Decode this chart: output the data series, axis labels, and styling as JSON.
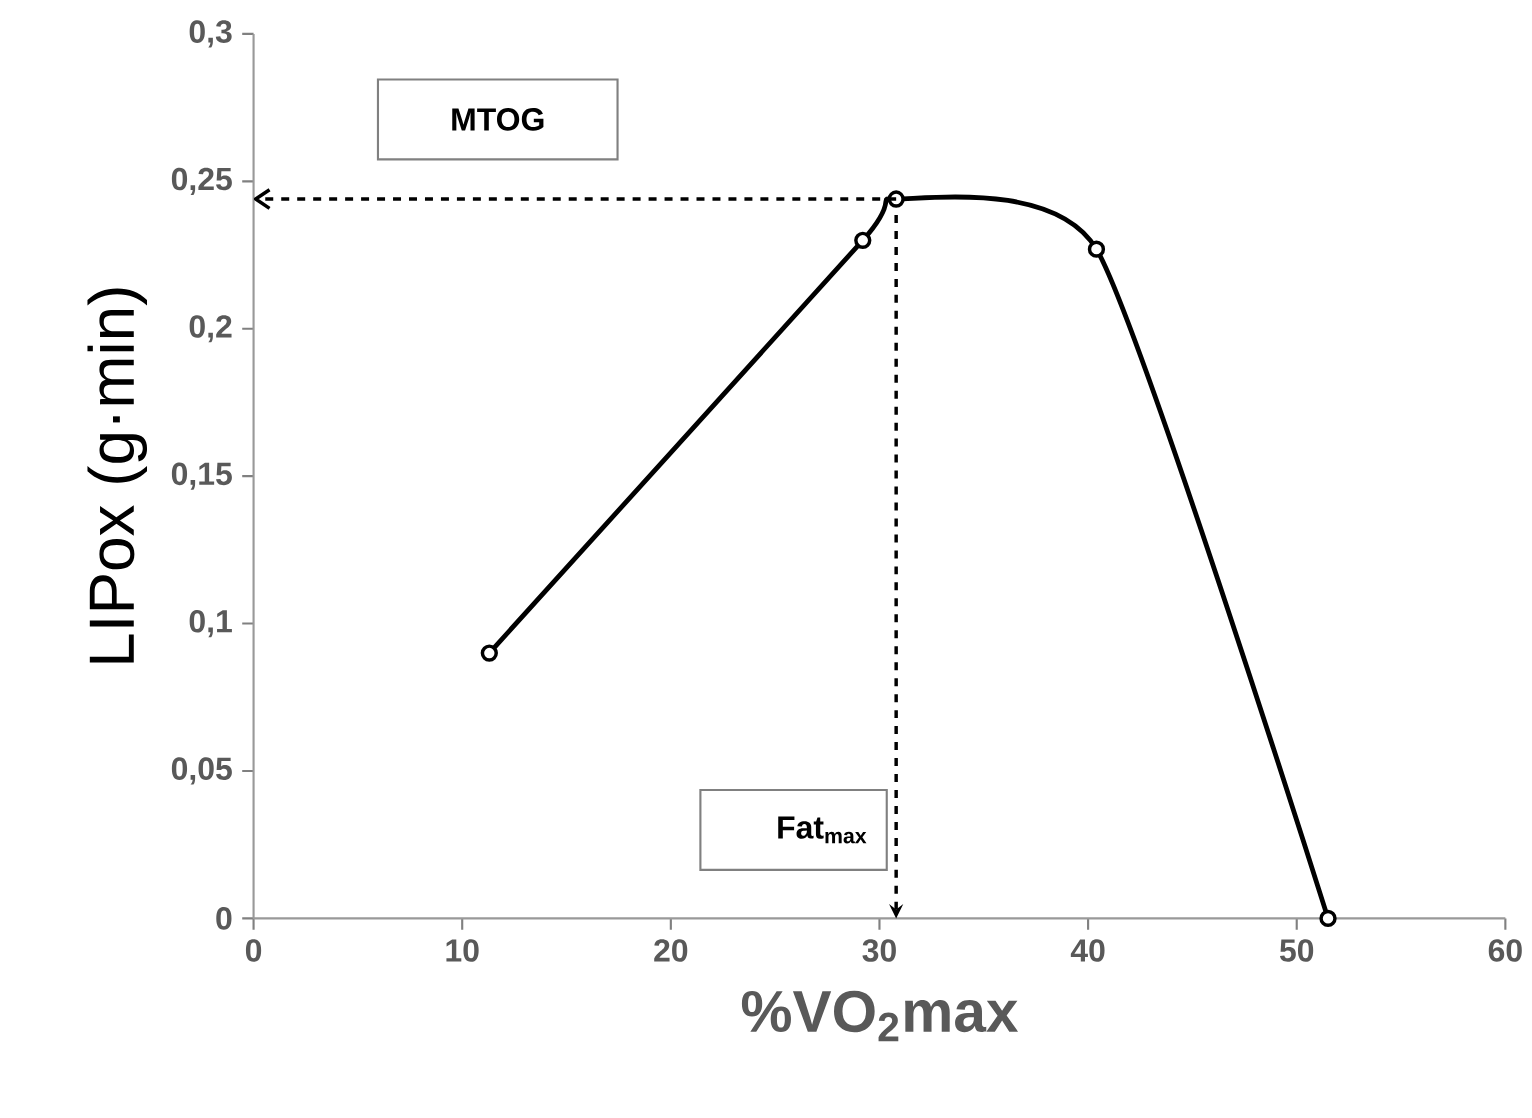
{
  "chart_data": {
    "type": "line",
    "xlabel": "%VO$_{2}$max",
    "ylabel": "LIPox (g·min)",
    "x": [
      11.3,
      29.2,
      30.8,
      40.4,
      51.5
    ],
    "series": [
      {
        "color": "#000000",
        "values": [
          0.09,
          0.23,
          0.244,
          0.227,
          0
        ]
      }
    ],
    "marker": "circle",
    "line_style": "solid",
    "grid": false,
    "xlim": [
      0,
      60
    ],
    "xticks": [
      0,
      10,
      20,
      30,
      40,
      50,
      60
    ],
    "ylim": [
      0,
      0.3
    ],
    "yticks": [
      {
        "value": 0,
        "label": "0"
      },
      {
        "value": 0.05,
        "label": "0,05"
      },
      {
        "value": 0.1,
        "label": "0,1"
      },
      {
        "value": 0.15,
        "label": "0,15"
      },
      {
        "value": 0.2,
        "label": "0,2"
      },
      {
        "value": 0.25,
        "label": "0,25"
      },
      {
        "value": 0.3,
        "label": "0,3"
      }
    ],
    "ref_lines": [
      {
        "axis": "y",
        "value": 0.244,
        "label": "MTOG",
        "line_style": "dashed"
      },
      {
        "axis": "x",
        "value": 30.8,
        "label": "Fat$_{max}$",
        "line_style": "dashed"
      }
    ]
  }
}
